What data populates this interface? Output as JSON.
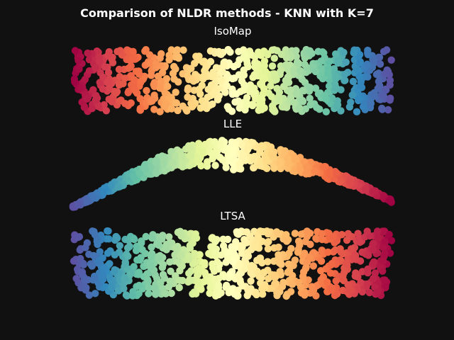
{
  "figure": {
    "title": "Comparison of NLDR methods - KNN with K=7",
    "background": "#111111",
    "colormap": "Spectral",
    "colormap_stops": [
      "#9e0142",
      "#d53e4f",
      "#f46d43",
      "#fdae61",
      "#fee08b",
      "#ffffbf",
      "#e6f598",
      "#abdda4",
      "#66c2a5",
      "#3288bd",
      "#5e4fa2"
    ]
  },
  "chart_data": [
    {
      "type": "scatter",
      "title": "IsoMap",
      "shape": "filled rectangular band with scattered holes",
      "color_direction": "red on the left to purple on the right",
      "approx_points": 1000,
      "axes": "off",
      "grid": false
    },
    {
      "type": "scatter",
      "title": "LLE",
      "shape": "thin arched curve",
      "color_direction": "purple on the left to red on the right",
      "approx_points": 1000,
      "axes": "off",
      "grid": false
    },
    {
      "type": "scatter",
      "title": "LTSA",
      "shape": "filled rectangular band with scattered holes",
      "color_direction": "purple on the left to red on the right",
      "approx_points": 1000,
      "axes": "off",
      "grid": false
    }
  ]
}
